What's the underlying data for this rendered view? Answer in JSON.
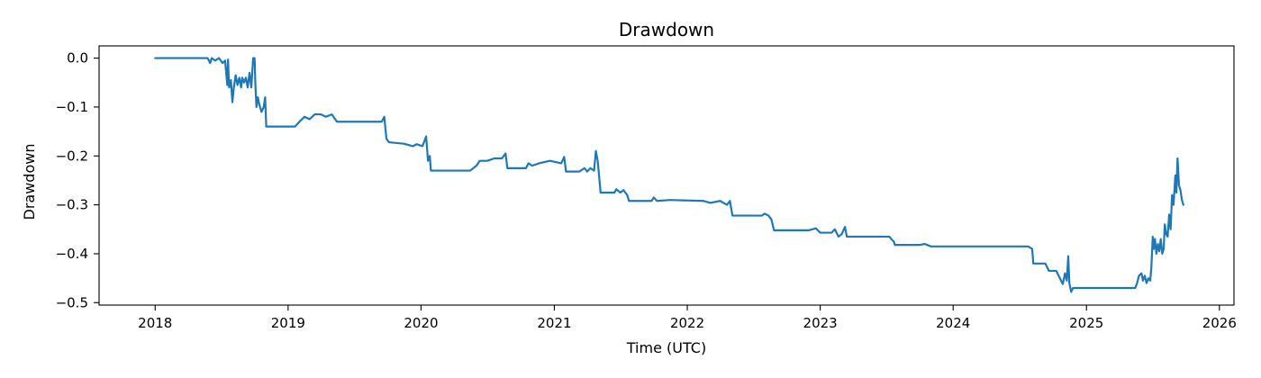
{
  "chart_data": {
    "type": "line",
    "title": "Drawdown",
    "xlabel": "Time (UTC)",
    "ylabel": "Drawdown",
    "xlim": [
      "2017-07-31",
      "2026-02-10"
    ],
    "ylim": [
      -0.505,
      0.025
    ],
    "x_ticks": [
      "2018",
      "2019",
      "2020",
      "2021",
      "2022",
      "2023",
      "2024",
      "2025",
      "2026"
    ],
    "y_ticks": [
      "0.0",
      "−0.1",
      "−0.2",
      "−0.3",
      "−0.4",
      "−0.5"
    ],
    "y_tick_values": [
      0.0,
      -0.1,
      -0.2,
      -0.3,
      -0.4,
      -0.5
    ],
    "grid": false,
    "color": "#1f77b4",
    "series": [
      {
        "points": [
          [
            "2018-01-01",
            0.0
          ],
          [
            "2018-05-25",
            0.0
          ],
          [
            "2018-06-01",
            -0.01
          ],
          [
            "2018-06-05",
            0.0
          ],
          [
            "2018-06-15",
            -0.005
          ],
          [
            "2018-06-25",
            0.0
          ],
          [
            "2018-07-05",
            -0.01
          ],
          [
            "2018-07-12",
            -0.005
          ],
          [
            "2018-07-15",
            -0.03
          ],
          [
            "2018-07-18",
            -0.055
          ],
          [
            "2018-07-20",
            -0.003
          ],
          [
            "2018-07-23",
            -0.06
          ],
          [
            "2018-07-28",
            -0.045
          ],
          [
            "2018-08-01",
            -0.09
          ],
          [
            "2018-08-05",
            -0.06
          ],
          [
            "2018-08-10",
            -0.035
          ],
          [
            "2018-08-15",
            -0.055
          ],
          [
            "2018-08-20",
            -0.04
          ],
          [
            "2018-08-25",
            -0.06
          ],
          [
            "2018-08-28",
            -0.04
          ],
          [
            "2018-09-02",
            -0.05
          ],
          [
            "2018-09-07",
            -0.04
          ],
          [
            "2018-09-12",
            -0.06
          ],
          [
            "2018-09-17",
            -0.03
          ],
          [
            "2018-09-22",
            -0.06
          ],
          [
            "2018-09-27",
            0.0
          ],
          [
            "2018-10-01",
            0.0
          ],
          [
            "2018-10-03",
            -0.05
          ],
          [
            "2018-10-06",
            -0.1
          ],
          [
            "2018-10-10",
            -0.08
          ],
          [
            "2018-10-14",
            -0.095
          ],
          [
            "2018-10-20",
            -0.11
          ],
          [
            "2018-10-26",
            -0.1
          ],
          [
            "2018-10-30",
            -0.08
          ],
          [
            "2018-11-02",
            -0.14
          ],
          [
            "2019-01-10",
            -0.14
          ],
          [
            "2019-01-20",
            -0.14
          ],
          [
            "2019-02-01",
            -0.13
          ],
          [
            "2019-02-15",
            -0.12
          ],
          [
            "2019-03-01",
            -0.125
          ],
          [
            "2019-03-15",
            -0.115
          ],
          [
            "2019-04-01",
            -0.115
          ],
          [
            "2019-04-15",
            -0.12
          ],
          [
            "2019-05-01",
            -0.115
          ],
          [
            "2019-05-15",
            -0.13
          ],
          [
            "2019-09-15",
            -0.13
          ],
          [
            "2019-09-22",
            -0.12
          ],
          [
            "2019-09-28",
            -0.165
          ],
          [
            "2019-10-05",
            -0.172
          ],
          [
            "2019-11-15",
            -0.175
          ],
          [
            "2019-12-10",
            -0.18
          ],
          [
            "2019-12-20",
            -0.176
          ],
          [
            "2020-01-05",
            -0.18
          ],
          [
            "2020-01-10",
            -0.17
          ],
          [
            "2020-01-15",
            -0.16
          ],
          [
            "2020-01-20",
            -0.21
          ],
          [
            "2020-01-25",
            -0.2
          ],
          [
            "2020-01-28",
            -0.23
          ],
          [
            "2020-05-15",
            -0.23
          ],
          [
            "2020-06-01",
            -0.22
          ],
          [
            "2020-06-10",
            -0.21
          ],
          [
            "2020-07-01",
            -0.21
          ],
          [
            "2020-07-20",
            -0.205
          ],
          [
            "2020-08-10",
            -0.205
          ],
          [
            "2020-08-20",
            -0.195
          ],
          [
            "2020-08-25",
            -0.225
          ],
          [
            "2020-10-15",
            -0.225
          ],
          [
            "2020-10-22",
            -0.215
          ],
          [
            "2020-11-01",
            -0.22
          ],
          [
            "2020-11-20",
            -0.215
          ],
          [
            "2020-12-20",
            -0.21
          ],
          [
            "2021-01-20",
            -0.215
          ],
          [
            "2021-01-28",
            -0.202
          ],
          [
            "2021-02-02",
            -0.232
          ],
          [
            "2021-03-10",
            -0.232
          ],
          [
            "2021-03-25",
            -0.225
          ],
          [
            "2021-04-01",
            -0.232
          ],
          [
            "2021-04-10",
            -0.225
          ],
          [
            "2021-04-20",
            -0.23
          ],
          [
            "2021-04-25",
            -0.19
          ],
          [
            "2021-04-30",
            -0.21
          ],
          [
            "2021-05-08",
            -0.275
          ],
          [
            "2021-06-15",
            -0.275
          ],
          [
            "2021-06-20",
            -0.268
          ],
          [
            "2021-07-01",
            -0.275
          ],
          [
            "2021-07-10",
            -0.27
          ],
          [
            "2021-07-20",
            -0.28
          ],
          [
            "2021-07-25",
            -0.292
          ],
          [
            "2021-09-25",
            -0.292
          ],
          [
            "2021-10-01",
            -0.285
          ],
          [
            "2021-10-10",
            -0.292
          ],
          [
            "2021-11-15",
            -0.29
          ],
          [
            "2022-02-15",
            -0.292
          ],
          [
            "2022-03-05",
            -0.296
          ],
          [
            "2022-04-01",
            -0.292
          ],
          [
            "2022-04-20",
            -0.3
          ],
          [
            "2022-04-28",
            -0.292
          ],
          [
            "2022-05-05",
            -0.322
          ],
          [
            "2022-07-25",
            -0.322
          ],
          [
            "2022-08-01",
            -0.318
          ],
          [
            "2022-08-12",
            -0.322
          ],
          [
            "2022-08-20",
            -0.33
          ],
          [
            "2022-08-27",
            -0.352
          ],
          [
            "2022-11-01",
            -0.352
          ],
          [
            "2022-12-01",
            -0.352
          ],
          [
            "2022-12-20",
            -0.348
          ],
          [
            "2023-01-01",
            -0.357
          ],
          [
            "2023-02-01",
            -0.357
          ],
          [
            "2023-02-10",
            -0.35
          ],
          [
            "2023-02-20",
            -0.365
          ],
          [
            "2023-03-01",
            -0.36
          ],
          [
            "2023-03-10",
            -0.345
          ],
          [
            "2023-03-15",
            -0.365
          ],
          [
            "2023-07-10",
            -0.365
          ],
          [
            "2023-07-15",
            -0.37
          ],
          [
            "2023-07-22",
            -0.375
          ],
          [
            "2023-07-25",
            -0.382
          ],
          [
            "2023-10-01",
            -0.382
          ],
          [
            "2023-10-15",
            -0.38
          ],
          [
            "2023-11-01",
            -0.385
          ],
          [
            "2024-07-25",
            -0.385
          ],
          [
            "2024-08-05",
            -0.39
          ],
          [
            "2024-08-08",
            -0.42
          ],
          [
            "2024-08-12",
            -0.42
          ],
          [
            "2024-09-10",
            -0.42
          ],
          [
            "2024-09-20",
            -0.435
          ],
          [
            "2024-10-10",
            -0.435
          ],
          [
            "2024-10-20",
            -0.45
          ],
          [
            "2024-10-28",
            -0.462
          ],
          [
            "2024-11-03",
            -0.44
          ],
          [
            "2024-11-08",
            -0.455
          ],
          [
            "2024-11-12",
            -0.405
          ],
          [
            "2024-11-15",
            -0.46
          ],
          [
            "2024-11-20",
            -0.478
          ],
          [
            "2024-11-25",
            -0.47
          ],
          [
            "2025-05-15",
            -0.47
          ],
          [
            "2025-05-20",
            -0.46
          ],
          [
            "2025-05-25",
            -0.445
          ],
          [
            "2025-06-01",
            -0.44
          ],
          [
            "2025-06-05",
            -0.455
          ],
          [
            "2025-06-10",
            -0.445
          ],
          [
            "2025-06-15",
            -0.46
          ],
          [
            "2025-06-20",
            -0.45
          ],
          [
            "2025-06-25",
            -0.455
          ],
          [
            "2025-06-28",
            -0.43
          ],
          [
            "2025-07-02",
            -0.365
          ],
          [
            "2025-07-05",
            -0.39
          ],
          [
            "2025-07-08",
            -0.37
          ],
          [
            "2025-07-12",
            -0.4
          ],
          [
            "2025-07-16",
            -0.38
          ],
          [
            "2025-07-20",
            -0.395
          ],
          [
            "2025-07-24",
            -0.37
          ],
          [
            "2025-07-28",
            -0.4
          ],
          [
            "2025-08-01",
            -0.39
          ],
          [
            "2025-08-04",
            -0.34
          ],
          [
            "2025-08-08",
            -0.36
          ],
          [
            "2025-08-12",
            -0.365
          ],
          [
            "2025-08-16",
            -0.32
          ],
          [
            "2025-08-20",
            -0.35
          ],
          [
            "2025-08-24",
            -0.28
          ],
          [
            "2025-08-28",
            -0.3
          ],
          [
            "2025-09-02",
            -0.24
          ],
          [
            "2025-09-05",
            -0.275
          ],
          [
            "2025-09-08",
            -0.205
          ],
          [
            "2025-09-12",
            -0.26
          ],
          [
            "2025-09-16",
            -0.27
          ],
          [
            "2025-09-20",
            -0.29
          ],
          [
            "2025-09-24",
            -0.3
          ]
        ]
      }
    ]
  }
}
